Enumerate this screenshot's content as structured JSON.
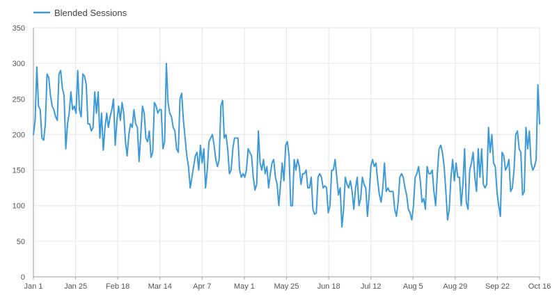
{
  "chart_data": {
    "type": "line",
    "title": "",
    "xlabel": "",
    "ylabel": "",
    "ylim": [
      0,
      350
    ],
    "xlim": [
      "Jan 1",
      "Oct 16"
    ],
    "y_ticks": [
      0,
      50,
      100,
      150,
      200,
      250,
      300,
      350
    ],
    "x_ticks": [
      {
        "label": "Jan 1",
        "day": 0
      },
      {
        "label": "Jan 25",
        "day": 24
      },
      {
        "label": "Feb 18",
        "day": 48
      },
      {
        "label": "Mar 14",
        "day": 72
      },
      {
        "label": "Apr 7",
        "day": 96
      },
      {
        "label": "May 1",
        "day": 120
      },
      {
        "label": "May 25",
        "day": 144
      },
      {
        "label": "Jun 18",
        "day": 168
      },
      {
        "label": "Jul 12",
        "day": 192
      },
      {
        "label": "Aug 5",
        "day": 216
      },
      {
        "label": "Aug 29",
        "day": 240
      },
      {
        "label": "Sep 22",
        "day": 264
      },
      {
        "label": "Oct 16",
        "day": 288
      }
    ],
    "grid": true,
    "legend_position": "top-left",
    "series": [
      {
        "name": "Blended Sessions",
        "color": "#3e9ad6",
        "values": [
          200,
          220,
          295,
          240,
          235,
          195,
          192,
          215,
          285,
          280,
          255,
          240,
          235,
          225,
          220,
          285,
          290,
          265,
          255,
          180,
          215,
          230,
          260,
          235,
          240,
          230,
          290,
          235,
          225,
          285,
          282,
          270,
          215,
          215,
          205,
          210,
          260,
          230,
          260,
          195,
          230,
          178,
          210,
          230,
          210,
          225,
          235,
          250,
          185,
          220,
          240,
          220,
          245,
          230,
          190,
          170,
          200,
          215,
          210,
          235,
          215,
          210,
          162,
          200,
          240,
          230,
          195,
          190,
          205,
          168,
          175,
          245,
          240,
          230,
          235,
          235,
          180,
          190,
          300,
          245,
          230,
          225,
          210,
          205,
          180,
          175,
          250,
          258,
          220,
          195,
          170,
          155,
          125,
          140,
          155,
          170,
          175,
          150,
          185,
          160,
          180,
          125,
          150,
          190,
          195,
          200,
          185,
          165,
          155,
          165,
          240,
          248,
          195,
          200,
          180,
          145,
          150,
          180,
          195,
          195,
          195,
          150,
          140,
          145,
          140,
          150,
          180,
          175,
          170,
          140,
          122,
          130,
          205,
          160,
          150,
          165,
          145,
          155,
          125,
          145,
          160,
          165,
          140,
          130,
          100,
          130,
          160,
          135,
          185,
          190,
          170,
          100,
          100,
          165,
          150,
          165,
          155,
          130,
          145,
          145,
          150,
          125,
          125,
          140,
          95,
          88,
          90,
          140,
          145,
          140,
          125,
          128,
          125,
          90,
          100,
          150,
          150,
          165,
          140,
          115,
          125,
          70,
          95,
          140,
          130,
          125,
          135,
          120,
          95,
          125,
          140,
          100,
          110,
          140,
          130,
          125,
          85,
          115,
          155,
          165,
          155,
          160,
          135,
          115,
          105,
          125,
          160,
          120,
          125,
          120,
          120,
          120,
          95,
          85,
          105,
          140,
          145,
          140,
          125,
          115,
          95,
          90,
          80,
          100,
          140,
          145,
          155,
          135,
          105,
          110,
          95,
          155,
          145,
          145,
          150,
          120,
          100,
          145,
          180,
          185,
          175,
          155,
          120,
          80,
          95,
          140,
          165,
          135,
          160,
          140,
          140,
          100,
          130,
          180,
          105,
          95,
          150,
          160,
          175,
          140,
          120,
          180,
          140,
          180,
          130,
          125,
          130,
          210,
          175,
          200,
          160,
          155,
          120,
          100,
          85,
          175,
          170,
          150,
          155,
          165,
          120,
          125,
          150,
          200,
          205,
          180,
          175,
          115,
          120,
          210,
          180,
          205,
          160,
          150,
          155,
          165,
          270,
          215
        ]
      }
    ]
  }
}
